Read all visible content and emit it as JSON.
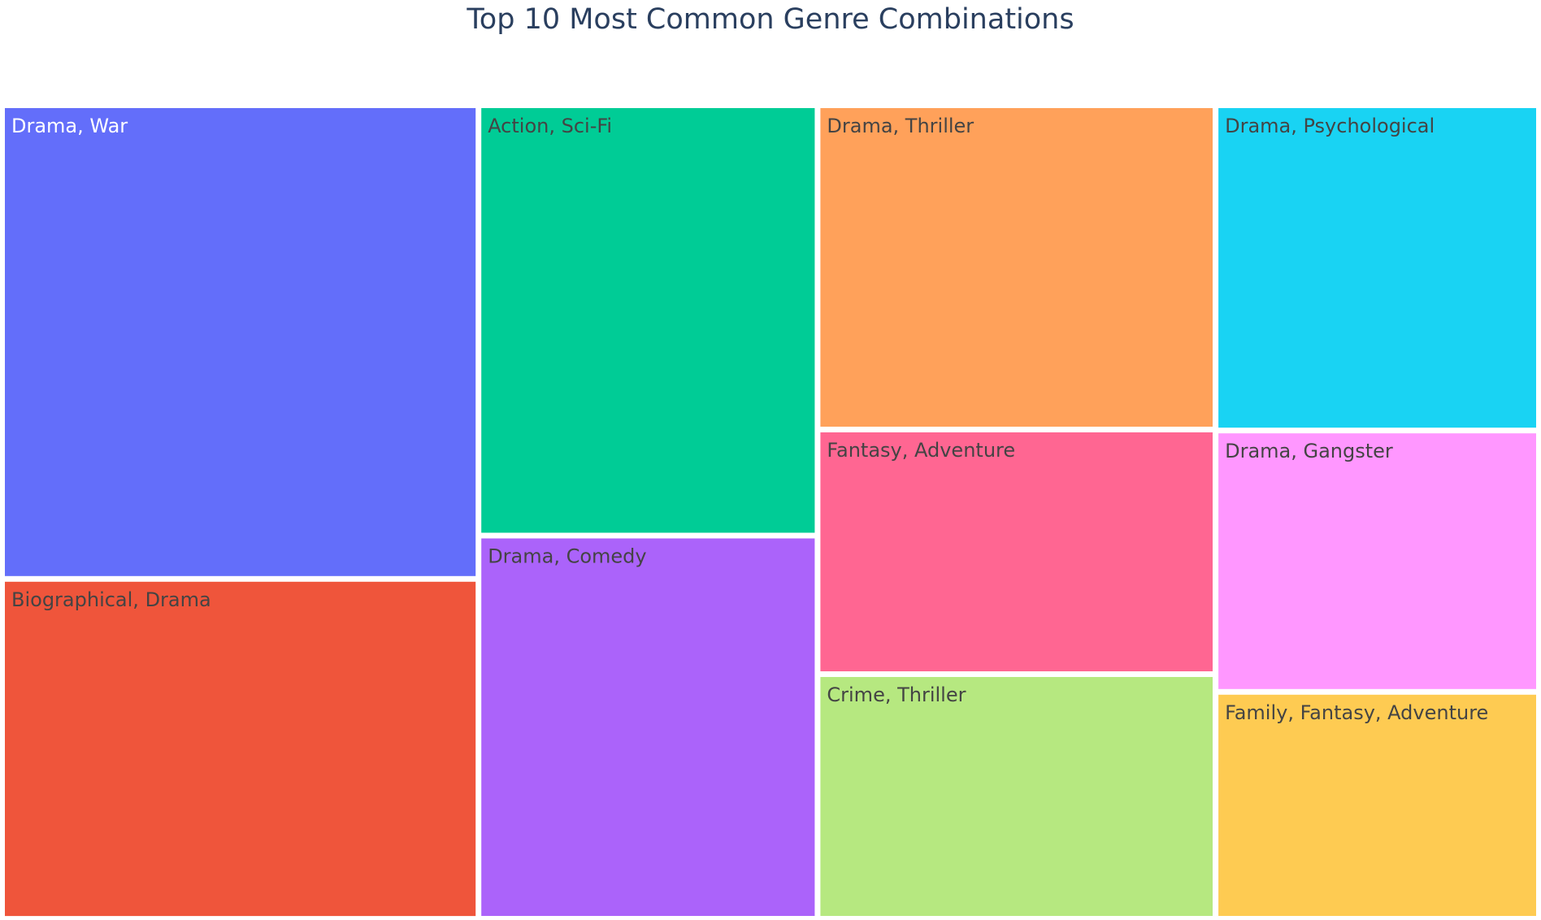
{
  "chart_data": {
    "type": "treemap",
    "title": "Top 10 Most Common Genre Combinations",
    "items": [
      {
        "label": "Drama, War",
        "value": 14,
        "color": "#636efa",
        "text_color": "#ffffff"
      },
      {
        "label": "Biographical, Drama",
        "value": 10,
        "color": "#ef553b",
        "text_color": "#444444"
      },
      {
        "label": "Action, Sci-Fi",
        "value": 9,
        "color": "#00cc96",
        "text_color": "#444444"
      },
      {
        "label": "Drama, Comedy",
        "value": 8,
        "color": "#ab63fa",
        "text_color": "#444444"
      },
      {
        "label": "Drama, Thriller",
        "value": 8,
        "color": "#ffa15a",
        "text_color": "#444444"
      },
      {
        "label": "Fantasy, Adventure",
        "value": 6,
        "color": "#ff6692",
        "text_color": "#444444"
      },
      {
        "label": "Crime, Thriller",
        "value": 6,
        "color": "#b6e880",
        "text_color": "#444444"
      },
      {
        "label": "Drama, Psychological",
        "value": 6.5,
        "color": "#19d3f3",
        "text_color": "#444444"
      },
      {
        "label": "Drama, Gangster",
        "value": 5.2,
        "color": "#ff97ff",
        "text_color": "#444444"
      },
      {
        "label": "Family, Fantasy, Adventure",
        "value": 4.5,
        "color": "#fecb52",
        "text_color": "#444444"
      }
    ]
  }
}
